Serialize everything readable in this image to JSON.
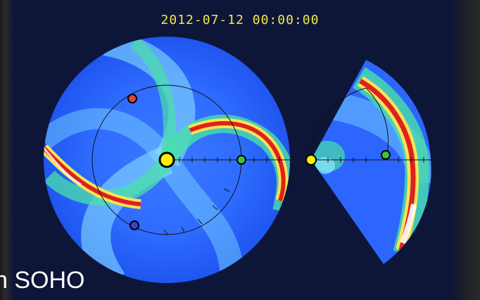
{
  "header": {
    "timestamp": "2012-07-12 00:00:00"
  },
  "caption": {
    "text": "n SOHO"
  },
  "colors": {
    "background": "#0d1638",
    "timestamp": "#f2e84a",
    "sun": "#ffee00",
    "earth": "#3cc43c",
    "stereo_a": "#e04040",
    "stereo_b": "#4040d0",
    "plasma_low": "#1e5cff",
    "plasma_mid": "#35d4ff",
    "plasma_high": "#e81a1a"
  },
  "panels": [
    {
      "name": "ecliptic-plane-view"
    },
    {
      "name": "meridional-plane-view"
    }
  ],
  "bodies": [
    "sun-marker",
    "earth-marker",
    "stereo-a-marker",
    "stereo-b-marker"
  ]
}
